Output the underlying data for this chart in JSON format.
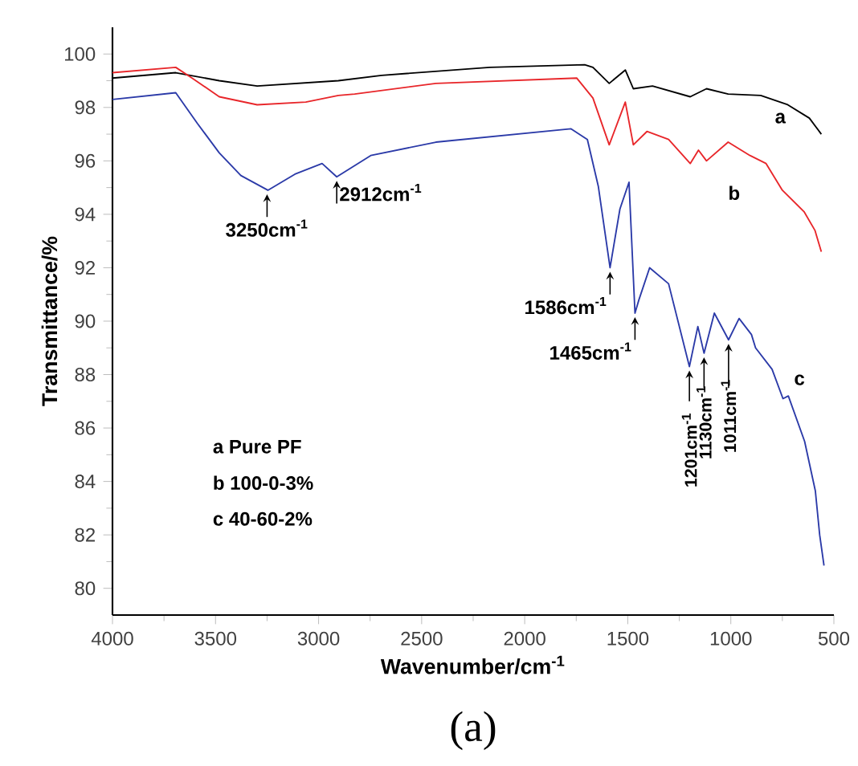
{
  "chart_data": {
    "type": "line",
    "xlabel": "Wavenumber/cm$^{-1}$",
    "ylabel": "Transmittance/%",
    "xlim": [
      4000,
      500
    ],
    "ylim": [
      79,
      101
    ],
    "xticks": [
      4000,
      3500,
      3000,
      2500,
      2000,
      1500,
      1000,
      500
    ],
    "yticks": [
      80,
      82,
      84,
      86,
      88,
      90,
      92,
      94,
      96,
      98,
      100
    ],
    "grid": false,
    "legend": false,
    "marker": "none",
    "line_style": "solid",
    "series": [
      {
        "name": "a",
        "color": "#000000",
        "x": [
          4000,
          3693,
          3482,
          3298,
          2904,
          2694,
          2169,
          1709,
          1669,
          1590,
          1512,
          1473,
          1380,
          1197,
          1118,
          1013,
          855,
          724,
          619,
          561
        ],
        "values": [
          99.1,
          99.3,
          99.0,
          98.8,
          99.0,
          99.2,
          99.5,
          99.6,
          99.5,
          98.9,
          99.4,
          98.7,
          98.8,
          98.4,
          98.7,
          98.5,
          98.45,
          98.1,
          97.6,
          97.0
        ]
      },
      {
        "name": "b",
        "color": "#e8262a",
        "x": [
          4000,
          3693,
          3614,
          3482,
          3298,
          3062,
          2904,
          2825,
          2431,
          1748,
          1669,
          1590,
          1512,
          1473,
          1407,
          1302,
          1197,
          1157,
          1118,
          1013,
          907,
          829,
          750,
          645,
          592,
          561
        ],
        "values": [
          99.3,
          99.5,
          99.1,
          98.4,
          98.1,
          98.2,
          98.45,
          98.5,
          98.9,
          99.1,
          98.35,
          96.6,
          98.2,
          96.6,
          97.1,
          96.8,
          95.9,
          96.4,
          96.0,
          96.7,
          96.2,
          95.9,
          94.9,
          94.1,
          93.4,
          92.6
        ]
      },
      {
        "name": "c",
        "color": "#2b3aa8",
        "x": [
          4000,
          3693,
          3588,
          3482,
          3377,
          3246,
          3115,
          2983,
          2912,
          2747,
          2431,
          1775,
          1696,
          1643,
          1586,
          1538,
          1494,
          1465,
          1446,
          1394,
          1302,
          1201,
          1160,
          1130,
          1080,
          1011,
          960,
          900,
          880,
          800,
          747,
          721,
          642,
          590,
          569,
          548
        ],
        "values": [
          98.3,
          98.55,
          97.4,
          96.3,
          95.45,
          94.9,
          95.5,
          95.9,
          95.4,
          96.2,
          96.7,
          97.2,
          96.8,
          95.05,
          92.0,
          94.2,
          95.2,
          90.3,
          90.8,
          92.0,
          91.4,
          88.3,
          89.8,
          88.8,
          90.3,
          89.3,
          90.1,
          89.5,
          89.0,
          88.2,
          87.1,
          87.2,
          85.5,
          83.65,
          82.0,
          80.85
        ]
      }
    ],
    "annotations": [
      {
        "text": "3250cm$^{-1}$",
        "x": 3250,
        "y": 94.9
      },
      {
        "text": "2912cm$^{-1}$",
        "x": 2912,
        "y": 95.4
      },
      {
        "text": "1586cm$^{-1}$",
        "x": 1586,
        "y": 92.0
      },
      {
        "text": "1465cm$^{-1}$",
        "x": 1465,
        "y": 90.3
      },
      {
        "text": "1201cm$^{-1}$",
        "x": 1201,
        "y": 88.3
      },
      {
        "text": "1130cm$^{-1}$",
        "x": 1130,
        "y": 88.8
      },
      {
        "text": "1011cm$^{-1}$",
        "x": 1011,
        "y": 89.3
      },
      "a Pure PF",
      "b 100-0-3%",
      "c 40-60-2%",
      "(a)"
    ]
  }
}
